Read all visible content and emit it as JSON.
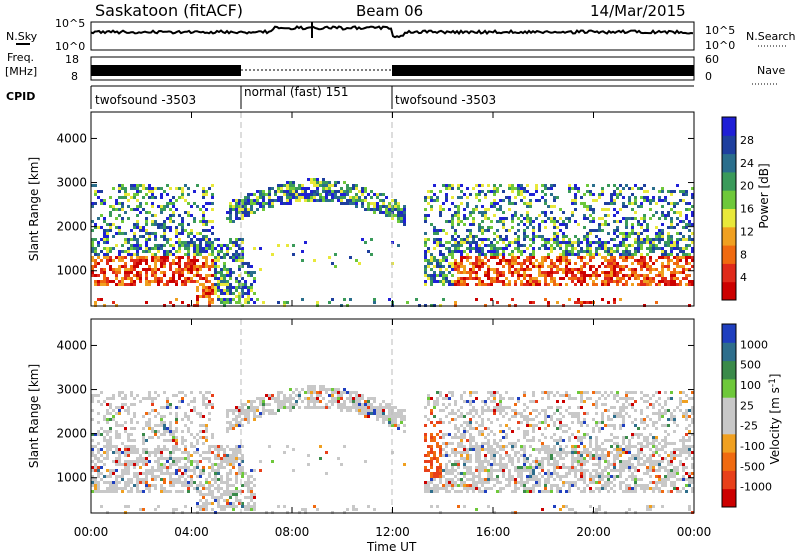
{
  "header": {
    "station": "Saskatoon (fitACF)",
    "beam": "Beam 06",
    "date": "14/Mar/2015"
  },
  "noise_panel": {
    "left_label": "N.Sky",
    "right_label": "N.Search",
    "left_ticks": [
      "10^5",
      "10^0"
    ],
    "right_ticks": [
      "10^5",
      "10^0"
    ]
  },
  "freq_panel": {
    "left_label_1": "Freq.",
    "left_label_2": "[MHz]",
    "left_ticks": [
      "18",
      "8"
    ],
    "right_label": "Nave",
    "right_ticks": [
      "60",
      "0"
    ]
  },
  "cpid": {
    "label": "CPID",
    "segments": [
      {
        "text": "twofsound -3503"
      },
      {
        "text": "normal (fast) 151"
      },
      {
        "text": "twofsound -3503"
      }
    ]
  },
  "chart_data": [
    {
      "type": "heatmap",
      "name": "power",
      "ylabel": "Slant Range [km]",
      "xlabel": "",
      "ylim": [
        200,
        4600
      ],
      "yticks": [
        "1000",
        "2000",
        "3000",
        "4000"
      ],
      "colorbar_label": "Power [dB]",
      "colorbar_ticks": [
        "28",
        "24",
        "20",
        "16",
        "12",
        "8",
        "4"
      ],
      "colors": [
        "#1f1fd6",
        "#1e3f9e",
        "#2a6e8c",
        "#3a9a5a",
        "#6ec83a",
        "#e8e83a",
        "#f0a020",
        "#f06a10",
        "#e02a1a",
        "#cc0000"
      ]
    },
    {
      "type": "heatmap",
      "name": "velocity",
      "ylabel": "Slant Range [km]",
      "xlabel": "Time UT",
      "ylim": [
        200,
        4600
      ],
      "yticks": [
        "1000",
        "2000",
        "3000",
        "4000"
      ],
      "colorbar_label": "Velocity [m s^-1]",
      "colorbar_ticks": [
        "1000",
        "500",
        "100",
        "25",
        "-25",
        "-100",
        "-500",
        "-1000"
      ],
      "colors": [
        "#1f3fbf",
        "#2e6e8c",
        "#3a8a4a",
        "#6ec83a",
        "#c8c8c8",
        "#c8c8c8",
        "#f0a020",
        "#f06a10",
        "#e8401a",
        "#cc0000"
      ]
    }
  ],
  "x_axis": {
    "label": "Time UT",
    "ticks": [
      "00:00",
      "04:00",
      "08:00",
      "12:00",
      "16:00",
      "20:00",
      "00:00"
    ]
  }
}
